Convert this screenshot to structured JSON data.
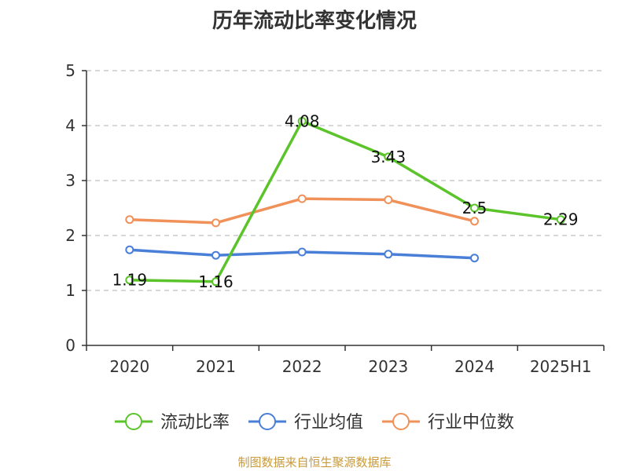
{
  "chart_data": {
    "type": "line",
    "title": "历年流动比率变化情况",
    "categories": [
      "2020",
      "2021",
      "2022",
      "2023",
      "2024",
      "2025H1"
    ],
    "ylim": [
      0,
      5
    ],
    "yticks": [
      "0",
      "1",
      "2",
      "3",
      "4",
      "5"
    ],
    "grid": true,
    "legend_position": "bottom",
    "series": [
      {
        "name": "流动比率",
        "color": "#5bc42a",
        "values": [
          1.19,
          1.16,
          4.08,
          3.43,
          2.5,
          2.29
        ],
        "labels": [
          "1.19",
          "1.16",
          "4.08",
          "3.43",
          "2.5",
          "2.29"
        ]
      },
      {
        "name": "行业均值",
        "color": "#4a7fd8",
        "values": [
          1.74,
          1.64,
          1.7,
          1.66,
          1.59,
          null
        ]
      },
      {
        "name": "行业中位数",
        "color": "#f0915a",
        "values": [
          2.29,
          2.23,
          2.67,
          2.65,
          2.26,
          null
        ]
      }
    ]
  },
  "footer": "制图数据来自恒生聚源数据库"
}
